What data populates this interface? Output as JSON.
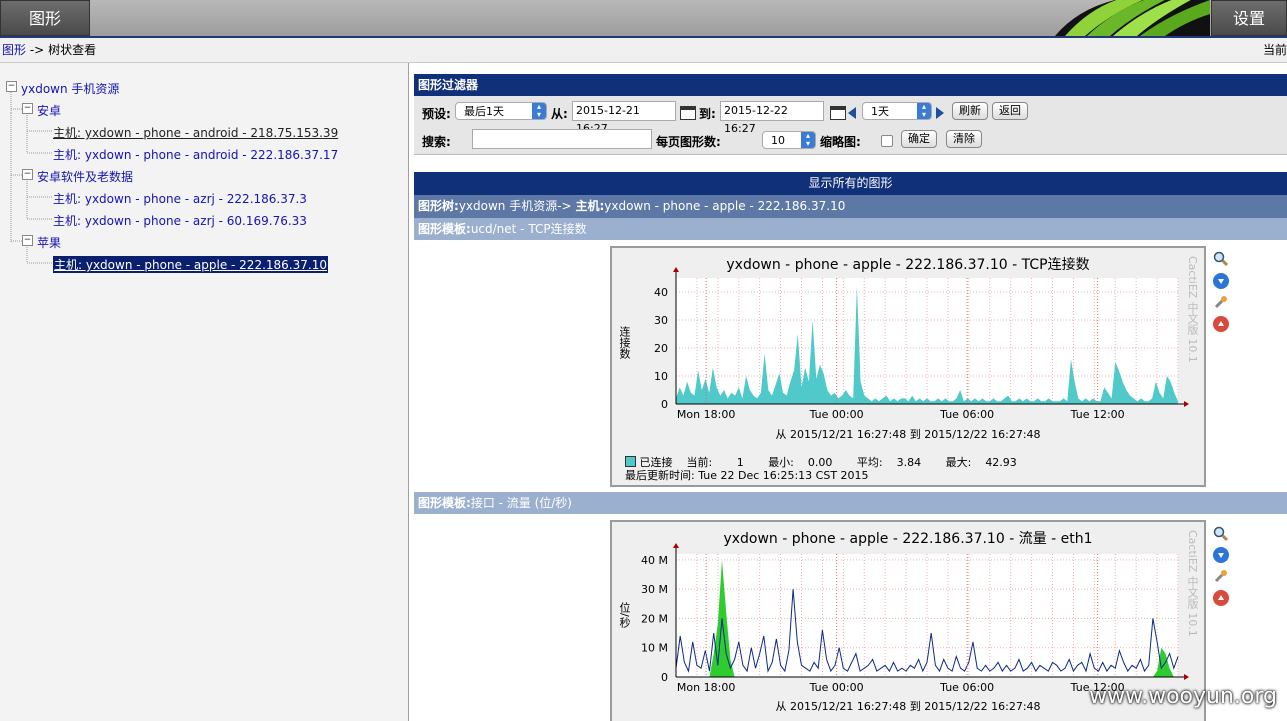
{
  "nav": {
    "graphs_tab": "图形",
    "settings_tab": "设置"
  },
  "breadcrumb": {
    "link": "图形",
    "sep": "->",
    "current": "树状查看",
    "right": "当前"
  },
  "tree": {
    "root": "yxdown 手机资源",
    "groups": [
      {
        "label": "安卓",
        "items": [
          "主机: yxdown - phone - android - 218.75.153.39",
          "主机: yxdown - phone - android - 222.186.37.17"
        ]
      },
      {
        "label": "安卓软件及老数据",
        "items": [
          "主机: yxdown - phone - azrj - 222.186.37.3",
          "主机: yxdown - phone - azrj - 60.169.76.33"
        ]
      },
      {
        "label": "苹果",
        "items": [
          "主机: yxdown - phone - apple - 222.186.37.10"
        ]
      }
    ]
  },
  "filter": {
    "title": "图形过滤器",
    "preset_label": "预设:",
    "preset_value": "最后1天",
    "from_label": "从:",
    "from_value": "2015-12-21 16:27",
    "to_label": "到:",
    "to_value": "2015-12-22 16:27",
    "span_value": "1天",
    "refresh": "刷新",
    "back": "返回",
    "search_label": "搜索:",
    "search_value": "",
    "per_page_label": "每页图形数:",
    "per_page_value": "10",
    "thumb_label": "缩略图:",
    "ok": "确定",
    "clear": "清除"
  },
  "display_all": "显示所有的图形",
  "tree_header": {
    "label1": "图形树:",
    "value1": "yxdown 手机资源->",
    "label2": "主机:",
    "value2": "yxdown - phone - apple - 222.186.37.10"
  },
  "templates": [
    {
      "label": "图形模板:",
      "value": "ucd/net - TCP连接数"
    },
    {
      "label": "图形模板:",
      "value": "接口 - 流量 (位/秒)"
    }
  ],
  "graphs": [
    {
      "title": "yxdown - phone - apple - 222.186.37.10 - TCP连接数",
      "side": "CactiEZ 中文版 10.1",
      "ylabel": "连接数",
      "range": "从 2015/12/21 16:27:48 到 2015/12/22 16:27:48",
      "legend": {
        "name": "已连接",
        "cur_label": "当前:",
        "cur": "1",
        "min_label": "最小:",
        "min": "0.00",
        "avg_label": "平均:",
        "avg": "3.84",
        "max_label": "最大:",
        "max": "42.93"
      },
      "updated": "最后更新时间: Tue 22 Dec 16:25:13 CST 2015",
      "color": "#4fc9c9"
    },
    {
      "title": "yxdown - phone - apple - 222.186.37.10 - 流量 - eth1",
      "side": "CactiEZ 中文版 10.1",
      "ylabel": "位/秒",
      "range": "从 2015/12/21 16:27:48 到 2015/12/22 16:27:48",
      "color_in": "#2ecc2e",
      "color_out": "#0b2a8a"
    }
  ],
  "chart_data": [
    {
      "type": "area",
      "title": "yxdown - phone - apple - 222.186.37.10 - TCP连接数",
      "ylabel": "连接数",
      "x_ticks": [
        "Mon 18:00",
        "Tue 00:00",
        "Tue 06:00",
        "Tue 12:00"
      ],
      "y_ticks": [
        "0",
        "10",
        "20",
        "30",
        "40"
      ],
      "ylim": [
        0,
        45
      ],
      "series": [
        {
          "name": "已连接",
          "values": [
            2,
            6,
            3,
            8,
            4,
            3,
            12,
            5,
            9,
            4,
            13,
            6,
            3,
            5,
            2,
            4,
            3,
            6,
            2,
            10,
            5,
            3,
            2,
            4,
            18,
            5,
            3,
            7,
            11,
            4,
            3,
            8,
            12,
            25,
            6,
            13,
            8,
            30,
            9,
            14,
            11,
            5,
            3,
            4,
            2,
            3,
            5,
            3,
            2,
            42,
            8,
            3,
            2,
            1,
            2,
            1,
            2,
            3,
            1,
            2,
            1,
            2,
            2,
            1,
            3,
            1,
            2,
            1,
            2,
            1,
            1,
            2,
            1,
            2,
            1,
            1,
            2,
            5,
            1,
            2,
            1,
            2,
            1,
            2,
            1,
            1,
            2,
            1,
            1,
            2,
            3,
            1,
            1,
            2,
            1,
            2,
            1,
            1,
            2,
            1,
            1,
            2,
            1,
            1,
            1,
            2,
            1,
            16,
            8,
            2,
            1,
            2,
            1,
            2,
            1,
            1,
            6,
            4,
            2,
            15,
            12,
            8,
            5,
            3,
            2,
            1,
            2,
            1,
            1,
            2,
            8,
            4,
            2,
            10,
            8,
            4,
            1
          ]
        }
      ]
    },
    {
      "type": "line",
      "title": "yxdown - phone - apple - 222.186.37.10 - 流量 - eth1",
      "ylabel": "位/秒",
      "x_ticks": [
        "Mon 18:00",
        "Tue 00:00",
        "Tue 06:00",
        "Tue 12:00"
      ],
      "y_ticks": [
        "0",
        "10 M",
        "20 M",
        "30 M",
        "40 M"
      ],
      "ylim": [
        0,
        42
      ],
      "series": [
        {
          "name": "in",
          "values": [
            0,
            0,
            0,
            0,
            0,
            0,
            0,
            0,
            0,
            8,
            18,
            40,
            22,
            6,
            0,
            0,
            0,
            0,
            0,
            0,
            0,
            0,
            0,
            0,
            0,
            0,
            0,
            0,
            0,
            0,
            0,
            0,
            0,
            0,
            0,
            0,
            0,
            0,
            0,
            0,
            0,
            0,
            0,
            0,
            0,
            0,
            0,
            0,
            0,
            0,
            0,
            0,
            0,
            0,
            0,
            0,
            0,
            0,
            0,
            0,
            0,
            0,
            0,
            0,
            0,
            0,
            0,
            0,
            0,
            0,
            0,
            0,
            0,
            0,
            0,
            0,
            0,
            0,
            0,
            0,
            0,
            0,
            0,
            0,
            0,
            0,
            0,
            0,
            0,
            0,
            0,
            0,
            0,
            0,
            0,
            0,
            0,
            0,
            0,
            0,
            0,
            0,
            0,
            0,
            0,
            0,
            0,
            0,
            0,
            0,
            0,
            0,
            0,
            0,
            0,
            2,
            10,
            8,
            3,
            0,
            0
          ]
        },
        {
          "name": "out",
          "values": [
            3,
            14,
            5,
            2,
            12,
            4,
            3,
            9,
            2,
            15,
            4,
            20,
            8,
            3,
            6,
            12,
            4,
            2,
            10,
            3,
            8,
            14,
            2,
            5,
            13,
            4,
            2,
            9,
            30,
            12,
            4,
            3,
            2,
            5,
            3,
            16,
            6,
            2,
            4,
            10,
            3,
            2,
            5,
            8,
            2,
            3,
            4,
            6,
            2,
            3,
            4,
            2,
            5,
            2,
            3,
            2,
            4,
            3,
            6,
            2,
            5,
            15,
            4,
            2,
            6,
            3,
            2,
            7,
            3,
            2,
            5,
            12,
            3,
            2,
            4,
            2,
            3,
            5,
            2,
            4,
            2,
            3,
            6,
            2,
            3,
            5,
            2,
            4,
            3,
            2,
            5,
            4,
            2,
            3,
            6,
            2,
            4,
            5,
            2,
            8,
            3,
            2,
            5,
            2,
            4,
            3,
            9,
            5,
            2,
            4,
            3,
            6,
            2,
            4,
            20,
            12,
            3,
            5,
            8,
            3,
            7
          ]
        }
      ]
    }
  ]
}
